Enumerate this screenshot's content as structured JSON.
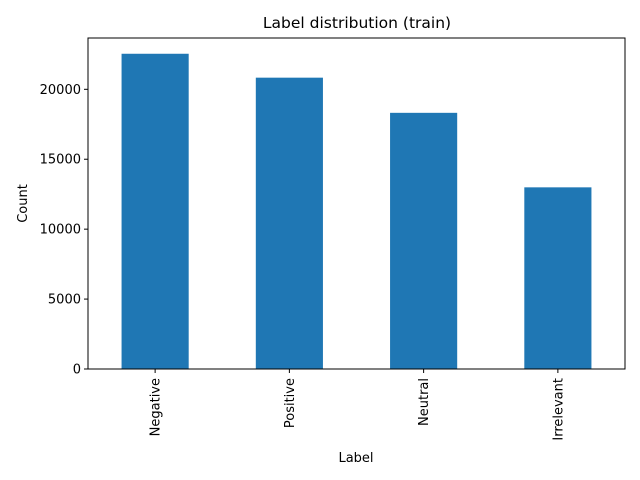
{
  "chart_data": {
    "type": "bar",
    "title": "Label distribution (train)",
    "xlabel": "Label",
    "ylabel": "Count",
    "categories": [
      "Negative",
      "Positive",
      "Neutral",
      "Irrelevant"
    ],
    "values": [
      22542,
      20832,
      18318,
      12990
    ],
    "ylim": [
      0,
      23669
    ],
    "yticks": [
      0,
      5000,
      10000,
      15000,
      20000
    ],
    "bar_color": "#1f77b4",
    "grid": false,
    "legend": "none"
  }
}
